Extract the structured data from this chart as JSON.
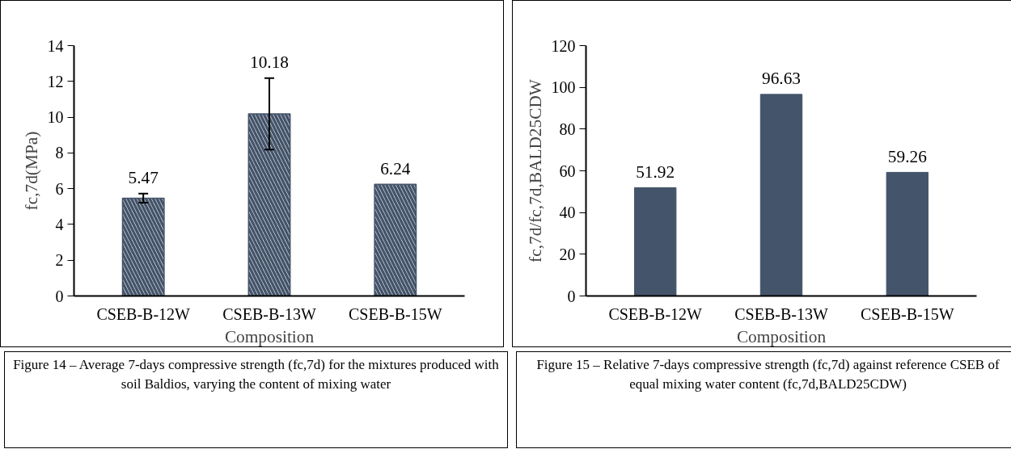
{
  "chart_data": [
    {
      "type": "bar",
      "categories": [
        "CSEB-B-12W",
        "CSEB-B-13W",
        "CSEB-B-15W"
      ],
      "values": [
        5.47,
        10.18,
        6.24
      ],
      "errors": [
        0.25,
        2.0,
        null
      ],
      "color": "#44546a",
      "ylabel": "fc,7d(MPa)",
      "xlabel": "Composition",
      "ylim": [
        0,
        14
      ],
      "yticks": [
        0,
        2,
        4,
        6,
        8,
        10,
        12,
        14
      ],
      "data_labels": true,
      "grid": false,
      "annotations": [
        "Figure 14 – Average 7-days compressive strength (fc,7d) for the mixtures produced with soil Baldios, varying the content of mixing water"
      ]
    },
    {
      "type": "bar",
      "categories": [
        "CSEB-B-12W",
        "CSEB-B-13W",
        "CSEB-B-15W"
      ],
      "values": [
        51.92,
        96.63,
        59.26
      ],
      "color": "#44546a",
      "ylabel": "fc,7d/fc,7d,BALD25CDW",
      "xlabel": "Composition",
      "ylim": [
        0,
        120
      ],
      "yticks": [
        0,
        20,
        40,
        60,
        80,
        100,
        120
      ],
      "data_labels": true,
      "grid": false,
      "annotations": [
        "Figure 15 – Relative 7-days compressive strength (fc,7d) against reference CSEB of equal mixing water content (fc,7d,BALD25CDW)"
      ]
    }
  ]
}
